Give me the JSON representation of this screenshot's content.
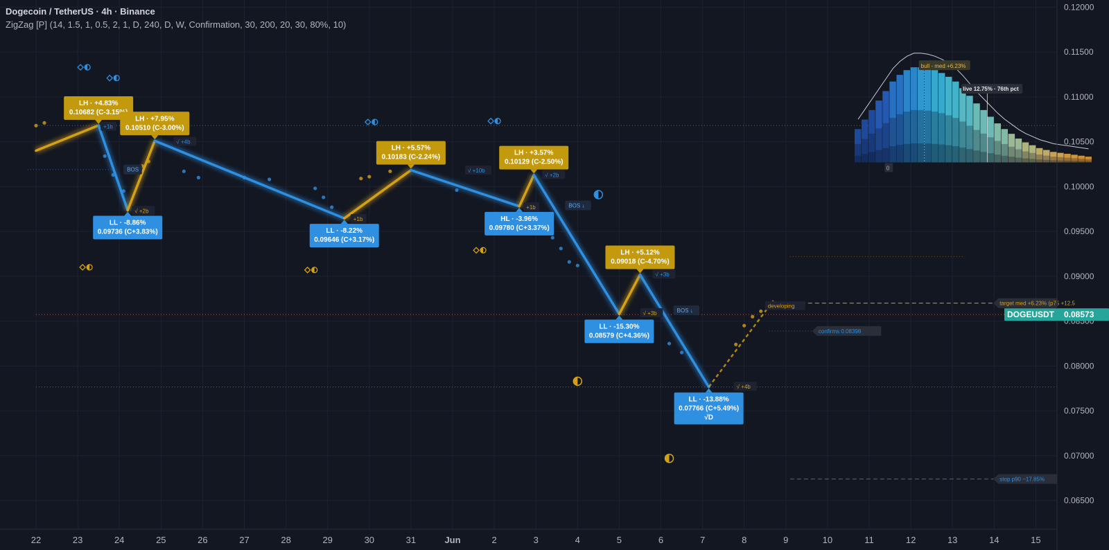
{
  "header": {
    "symbol_line": "Dogecoin / TetherUS · 4h · Binance",
    "indicator_line": "ZigZag [P] (14, 1.5, 1, 0.5, 2, 1, D, 240, D, W, Confirmation, 30, 200, 20, 30, 80%, 10)"
  },
  "colors": {
    "background": "#131722",
    "bull": "#d4a017",
    "bear": "#2f8fe0",
    "last_price": "#26a69a"
  },
  "chart_data": {
    "type": "line",
    "xlabels": [
      "22",
      "23",
      "24",
      "25",
      "26",
      "27",
      "28",
      "29",
      "30",
      "31",
      "Jun",
      "2",
      "3",
      "4",
      "5",
      "6",
      "7",
      "8",
      "9",
      "10",
      "11",
      "12",
      "13",
      "14",
      "15"
    ],
    "ylabels": [
      "0.12000",
      "0.11500",
      "0.11000",
      "0.10500",
      "0.10000",
      "0.09500",
      "0.09000",
      "0.08500",
      "0.08000",
      "0.07500",
      "0.07000",
      "0.06500"
    ],
    "ylim": [
      0.0618,
      0.1208
    ],
    "grid": true,
    "pivots": [
      {
        "x": 0,
        "y": 0.104
      },
      {
        "x": 1.5,
        "y": 0.10682,
        "label": "LH · +4.83%",
        "sub": "0.10682 (C-3.15%)",
        "kind": "high"
      },
      {
        "x": 2.2,
        "y": 0.09736,
        "label": "LL · -8.86%",
        "sub": "0.09736 (C+3.83%)",
        "kind": "low"
      },
      {
        "x": 2.85,
        "y": 0.1051,
        "label": "LH · +7.95%",
        "sub": "0.10510 (C-3.00%)",
        "kind": "high"
      },
      {
        "x": 7.4,
        "y": 0.09646,
        "label": "LL · -8.22%",
        "sub": "0.09646 (C+3.17%)",
        "kind": "low"
      },
      {
        "x": 9.0,
        "y": 0.10183,
        "label": "LH · +5.57%",
        "sub": "0.10183 (C-2.24%)",
        "kind": "high"
      },
      {
        "x": 11.6,
        "y": 0.0978,
        "label": "HL · -3.96%",
        "sub": "0.09780 (C+3.37%)",
        "kind": "low"
      },
      {
        "x": 11.95,
        "y": 0.10129,
        "label": "LH · +3.57%",
        "sub": "0.10129 (C-2.50%)",
        "kind": "high"
      },
      {
        "x": 14.0,
        "y": 0.08579,
        "label": "LL · -15.30%",
        "sub": "0.08579 (C+4.36%)",
        "kind": "low"
      },
      {
        "x": 14.5,
        "y": 0.09018,
        "label": "LH · +5.12%",
        "sub": "0.09018 (C-4.70%)",
        "kind": "high"
      },
      {
        "x": 16.15,
        "y": 0.07766,
        "label": "LL · -13.88%",
        "sub": "0.07766 (C+5.49%)",
        "sub2": "√D",
        "kind": "low"
      },
      {
        "x": 17.7,
        "y": 0.0873,
        "developing": true
      }
    ],
    "small_tags": [
      {
        "x": 1.55,
        "y": 0.1067,
        "text": "+1b",
        "kind": "bear"
      },
      {
        "x": 2.3,
        "y": 0.0973,
        "text": "√ +2b",
        "kind": "bull"
      },
      {
        "x": 3.3,
        "y": 0.105,
        "text": "√ +4b",
        "kind": "bear"
      },
      {
        "x": 7.55,
        "y": 0.0964,
        "text": "+1b",
        "kind": "bull"
      },
      {
        "x": 10.3,
        "y": 0.1018,
        "text": "√ +10b",
        "kind": "bear"
      },
      {
        "x": 11.7,
        "y": 0.0977,
        "text": "+1b",
        "kind": "bull"
      },
      {
        "x": 12.15,
        "y": 0.1013,
        "text": "√ +2b",
        "kind": "bear"
      },
      {
        "x": 14.5,
        "y": 0.0859,
        "text": "√ +3b",
        "kind": "bull"
      },
      {
        "x": 14.8,
        "y": 0.0902,
        "text": "√ +3b",
        "kind": "bear"
      },
      {
        "x": 16.75,
        "y": 0.0777,
        "text": "√ +4b",
        "kind": "bull"
      },
      {
        "x": 17.5,
        "y": 0.0867,
        "text": "developing",
        "kind": "bull"
      }
    ],
    "bos_tags": [
      {
        "x": 2.1,
        "y": 0.1019,
        "text": "BOS",
        "kind": "bear"
      },
      {
        "x": 12.7,
        "y": 0.0979,
        "text": "BOS ↓",
        "kind": "bear"
      },
      {
        "x": 15.3,
        "y": 0.0862,
        "text": "BOS ↓",
        "kind": "bear"
      }
    ],
    "dots": [
      {
        "x": 0,
        "y": 0.1068,
        "kind": "bull"
      },
      {
        "x": 0.2,
        "y": 0.1071,
        "kind": "bull"
      },
      {
        "x": 1.65,
        "y": 0.1034,
        "kind": "bear"
      },
      {
        "x": 1.85,
        "y": 0.1013,
        "kind": "bear"
      },
      {
        "x": 2.1,
        "y": 0.0995,
        "kind": "bear"
      },
      {
        "x": 2.55,
        "y": 0.1023,
        "kind": "bull"
      },
      {
        "x": 2.7,
        "y": 0.1028,
        "kind": "bull"
      },
      {
        "x": 3.55,
        "y": 0.1017,
        "kind": "bear"
      },
      {
        "x": 3.9,
        "y": 0.101,
        "kind": "bear"
      },
      {
        "x": 5.0,
        "y": 0.101,
        "kind": "bear"
      },
      {
        "x": 5.6,
        "y": 0.1008,
        "kind": "bear"
      },
      {
        "x": 6.7,
        "y": 0.0998,
        "kind": "bear"
      },
      {
        "x": 6.9,
        "y": 0.0988,
        "kind": "bear"
      },
      {
        "x": 7.1,
        "y": 0.0977,
        "kind": "bear"
      },
      {
        "x": 7.8,
        "y": 0.1009,
        "kind": "bull"
      },
      {
        "x": 8.0,
        "y": 0.1011,
        "kind": "bull"
      },
      {
        "x": 8.5,
        "y": 0.1017,
        "kind": "bull"
      },
      {
        "x": 10.1,
        "y": 0.0996,
        "kind": "bear"
      },
      {
        "x": 12.4,
        "y": 0.0943,
        "kind": "bear"
      },
      {
        "x": 12.6,
        "y": 0.0931,
        "kind": "bear"
      },
      {
        "x": 12.8,
        "y": 0.0916,
        "kind": "bear"
      },
      {
        "x": 13.0,
        "y": 0.0912,
        "kind": "bear"
      },
      {
        "x": 15.2,
        "y": 0.0825,
        "kind": "bear"
      },
      {
        "x": 15.5,
        "y": 0.0815,
        "kind": "bear"
      },
      {
        "x": 16.8,
        "y": 0.0824,
        "kind": "bull"
      },
      {
        "x": 17.0,
        "y": 0.0845,
        "kind": "bull"
      },
      {
        "x": 17.2,
        "y": 0.0855,
        "kind": "bull"
      },
      {
        "x": 17.4,
        "y": 0.0861,
        "kind": "bull"
      }
    ],
    "markers": [
      {
        "x": 1.15,
        "y": 0.1133,
        "kind": "bear",
        "size": "small"
      },
      {
        "x": 1.85,
        "y": 0.1121,
        "kind": "bear",
        "size": "small"
      },
      {
        "x": 8.05,
        "y": 0.1072,
        "kind": "bear",
        "size": "small"
      },
      {
        "x": 11.0,
        "y": 0.1073,
        "kind": "bear",
        "size": "small"
      },
      {
        "x": 13.5,
        "y": 0.0991,
        "kind": "bear",
        "size": "half"
      },
      {
        "x": 1.2,
        "y": 0.091,
        "kind": "bull",
        "size": "small"
      },
      {
        "x": 6.6,
        "y": 0.0907,
        "kind": "bull",
        "size": "small"
      },
      {
        "x": 10.65,
        "y": 0.0929,
        "kind": "bull",
        "size": "small"
      },
      {
        "x": 13.0,
        "y": 0.0783,
        "kind": "bull",
        "size": "half"
      },
      {
        "x": 15.2,
        "y": 0.0697,
        "kind": "bull",
        "size": "half"
      }
    ],
    "hlines": [
      {
        "y": 0.1068,
        "x_from": 0,
        "x_to": 24.5,
        "style": "dotted",
        "color": "#5d606b"
      },
      {
        "y": 0.08573,
        "x_from": 0,
        "x_to": 24.5,
        "style": "dotted",
        "color": "#a05a5a"
      },
      {
        "y": 0.07766,
        "x_from": 0,
        "x_to": 24.5,
        "style": "dotted",
        "color": "#5d606b"
      },
      {
        "y": 0.1019,
        "x_from": -0.2,
        "x_to": 1.9,
        "style": "dotted",
        "color": "#3a5f8f"
      },
      {
        "y": 0.0922,
        "x_from": 18.1,
        "x_to": 22.3,
        "style": "dotted",
        "color": "#6b5a2a"
      },
      {
        "y": 0.087,
        "x_from": 17.7,
        "x_to": 24.5,
        "style": "dashed",
        "color": "#d4a017"
      },
      {
        "y": 0.0839,
        "x_from": 17.6,
        "x_to": 18.9,
        "style": "dotted",
        "color": "#3a5f8f"
      },
      {
        "y": 0.0674,
        "x_from": 18.1,
        "x_to": 24.5,
        "style": "dashed",
        "color": "#2f6db0"
      }
    ],
    "side_tags": [
      {
        "x": 23.1,
        "y": 0.087,
        "text": "target med +6.23%  (p75 +12.5",
        "kind": "bull"
      },
      {
        "x": 18.75,
        "y": 0.0839,
        "text": "confirms 0.08398",
        "kind": "bear"
      },
      {
        "x": 23.1,
        "y": 0.0674,
        "text": "stop p90 −17.85%",
        "kind": "bear"
      }
    ],
    "distribution": {
      "bars": [
        0.35,
        0.45,
        0.55,
        0.65,
        0.75,
        0.85,
        0.92,
        0.97,
        1.0,
        1.0,
        0.99,
        0.97,
        0.94,
        0.9,
        0.85,
        0.78,
        0.7,
        0.62,
        0.55,
        0.48,
        0.41,
        0.35,
        0.3,
        0.25,
        0.21,
        0.18,
        0.15,
        0.13,
        0.11,
        0.1,
        0.09,
        0.08,
        0.07,
        0.06
      ],
      "bull_label": "bull - med +6.23%",
      "live_label": "live 12.75% · 76th pct",
      "zero_label": "0",
      "x_start": 19.65,
      "x_end": 25.35,
      "y_base": 0.1027,
      "y_top": 0.1133
    },
    "last_price": {
      "symbol": "DOGEUSDT",
      "value": "0.08573",
      "y": 0.08573
    }
  }
}
